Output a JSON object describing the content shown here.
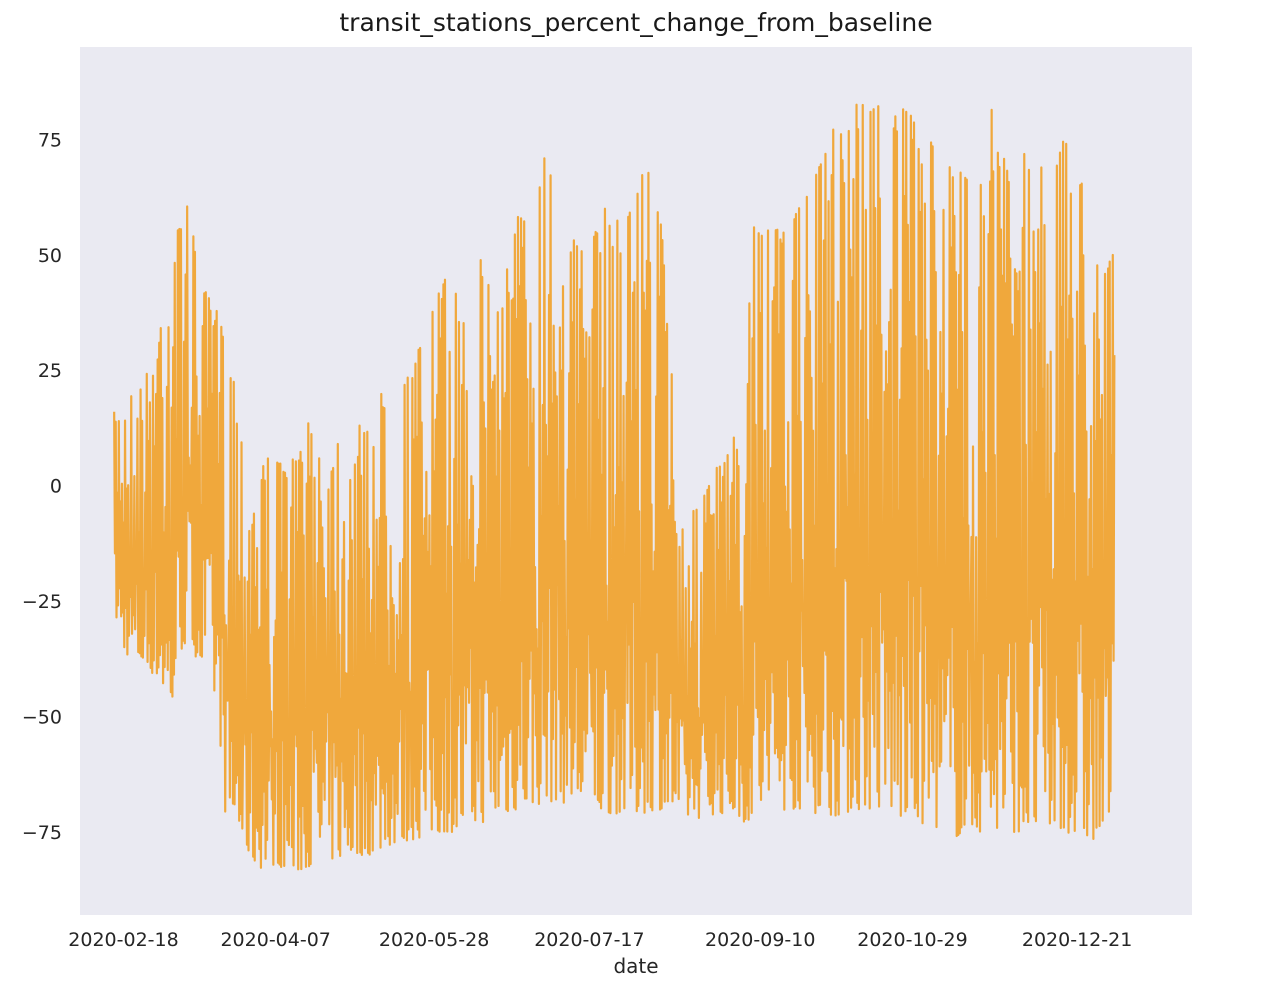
{
  "chart_data": {
    "type": "line",
    "title": "transit_stations_percent_change_from_baseline",
    "xlabel": "date",
    "ylabel": "",
    "x_range": [
      "2020-02-04",
      "2021-01-27"
    ],
    "ylim": [
      -93,
      95
    ],
    "grid": false,
    "line_color": "#f0a83c",
    "plot_background": "#eaeaf2",
    "x_tick_labels": [
      "2020-02-18",
      "2020-04-07",
      "2020-05-28",
      "2020-07-17",
      "2020-09-10",
      "2020-10-29",
      "2020-12-21"
    ],
    "y_tick_values": [
      -75,
      -50,
      -25,
      0,
      25,
      50,
      75
    ],
    "y_tick_labels": [
      "−75",
      "−50",
      "−25",
      "0",
      "25",
      "50",
      "75"
    ],
    "series": [
      {
        "x_start": "2020-02-15",
        "x_end": "2021-01-02",
        "envelope": [
          {
            "date": "2020-02-15",
            "max": 16,
            "min": -27
          },
          {
            "date": "2020-02-18",
            "max": 20,
            "min": -36
          },
          {
            "date": "2020-02-22",
            "max": 20,
            "min": -38
          },
          {
            "date": "2020-02-26",
            "max": 25,
            "min": -40
          },
          {
            "date": "2020-03-01",
            "max": 41,
            "min": -42
          },
          {
            "date": "2020-03-04",
            "max": 57,
            "min": -52
          },
          {
            "date": "2020-03-07",
            "max": 56,
            "min": -36
          },
          {
            "date": "2020-03-10",
            "max": 63,
            "min": -34
          },
          {
            "date": "2020-03-13",
            "max": 45,
            "min": -38
          },
          {
            "date": "2020-03-17",
            "max": 40,
            "min": -40
          },
          {
            "date": "2020-03-20",
            "max": 37,
            "min": -54
          },
          {
            "date": "2020-03-22",
            "max": 30,
            "min": -73
          },
          {
            "date": "2020-03-25",
            "max": 26,
            "min": -75
          },
          {
            "date": "2020-03-28",
            "max": 5,
            "min": -78
          },
          {
            "date": "2020-04-01",
            "max": 8,
            "min": -83
          },
          {
            "date": "2020-04-07",
            "max": 5,
            "min": -82
          },
          {
            "date": "2020-04-13",
            "max": 6,
            "min": -84
          },
          {
            "date": "2020-04-19",
            "max": 16,
            "min": -82
          },
          {
            "date": "2020-04-25",
            "max": 12,
            "min": -81
          },
          {
            "date": "2020-05-01",
            "max": 12,
            "min": -80
          },
          {
            "date": "2020-05-07",
            "max": 14,
            "min": -80
          },
          {
            "date": "2020-05-13",
            "max": 23,
            "min": -78
          },
          {
            "date": "2020-05-19",
            "max": 23,
            "min": -77
          },
          {
            "date": "2020-05-25",
            "max": 33,
            "min": -76
          },
          {
            "date": "2020-05-31",
            "max": 45,
            "min": -75
          },
          {
            "date": "2020-06-06",
            "max": 40,
            "min": -75
          },
          {
            "date": "2020-06-12",
            "max": 49,
            "min": -73
          },
          {
            "date": "2020-06-18",
            "max": 45,
            "min": -72
          },
          {
            "date": "2020-06-24",
            "max": 59,
            "min": -70
          },
          {
            "date": "2020-06-30",
            "max": 58,
            "min": -69
          },
          {
            "date": "2020-07-03",
            "max": 81,
            "min": -69
          },
          {
            "date": "2020-07-06",
            "max": 74,
            "min": -68
          },
          {
            "date": "2020-07-10",
            "max": 55,
            "min": -69
          },
          {
            "date": "2020-07-16",
            "max": 50,
            "min": -70
          },
          {
            "date": "2020-07-22",
            "max": 60,
            "min": -71
          },
          {
            "date": "2020-07-28",
            "max": 58,
            "min": -71
          },
          {
            "date": "2020-08-03",
            "max": 69,
            "min": -71
          },
          {
            "date": "2020-08-08",
            "max": 67,
            "min": -70
          },
          {
            "date": "2020-08-13",
            "max": 22,
            "min": -71
          },
          {
            "date": "2020-08-15",
            "max": -7,
            "min": -72
          },
          {
            "date": "2020-08-21",
            "max": -5,
            "min": -72
          },
          {
            "date": "2020-08-27",
            "max": 4,
            "min": -71
          },
          {
            "date": "2020-09-02",
            "max": 11,
            "min": -71
          },
          {
            "date": "2020-09-05",
            "max": -8,
            "min": -73
          },
          {
            "date": "2020-09-07",
            "max": 58,
            "min": -72
          },
          {
            "date": "2020-09-13",
            "max": 55,
            "min": -71
          },
          {
            "date": "2020-09-19",
            "max": 56,
            "min": -70
          },
          {
            "date": "2020-09-25",
            "max": 63,
            "min": -70
          },
          {
            "date": "2020-10-01",
            "max": 72,
            "min": -72
          },
          {
            "date": "2020-10-07",
            "max": 86,
            "min": -71
          },
          {
            "date": "2020-10-13",
            "max": 83,
            "min": -70
          },
          {
            "date": "2020-10-19",
            "max": 83,
            "min": -70
          },
          {
            "date": "2020-10-25",
            "max": 82,
            "min": -72
          },
          {
            "date": "2020-10-31",
            "max": 79,
            "min": -73
          },
          {
            "date": "2020-11-06",
            "max": 72,
            "min": -74
          },
          {
            "date": "2020-11-12",
            "max": 69,
            "min": -76
          },
          {
            "date": "2020-11-18",
            "max": 65,
            "min": -75
          },
          {
            "date": "2020-11-24",
            "max": 83,
            "min": -75
          },
          {
            "date": "2020-11-30",
            "max": 65,
            "min": -75
          },
          {
            "date": "2020-12-06",
            "max": 77,
            "min": -75
          },
          {
            "date": "2020-12-12",
            "max": 64,
            "min": -75
          },
          {
            "date": "2020-12-18",
            "max": 78,
            "min": -75
          },
          {
            "date": "2020-12-21",
            "max": 69,
            "min": -77
          },
          {
            "date": "2020-12-24",
            "max": 64,
            "min": -76
          },
          {
            "date": "2020-12-27",
            "max": 63,
            "min": -78
          },
          {
            "date": "2020-12-30",
            "max": 50,
            "min": -76
          },
          {
            "date": "2021-01-02",
            "max": 50,
            "min": -68
          }
        ]
      }
    ]
  }
}
